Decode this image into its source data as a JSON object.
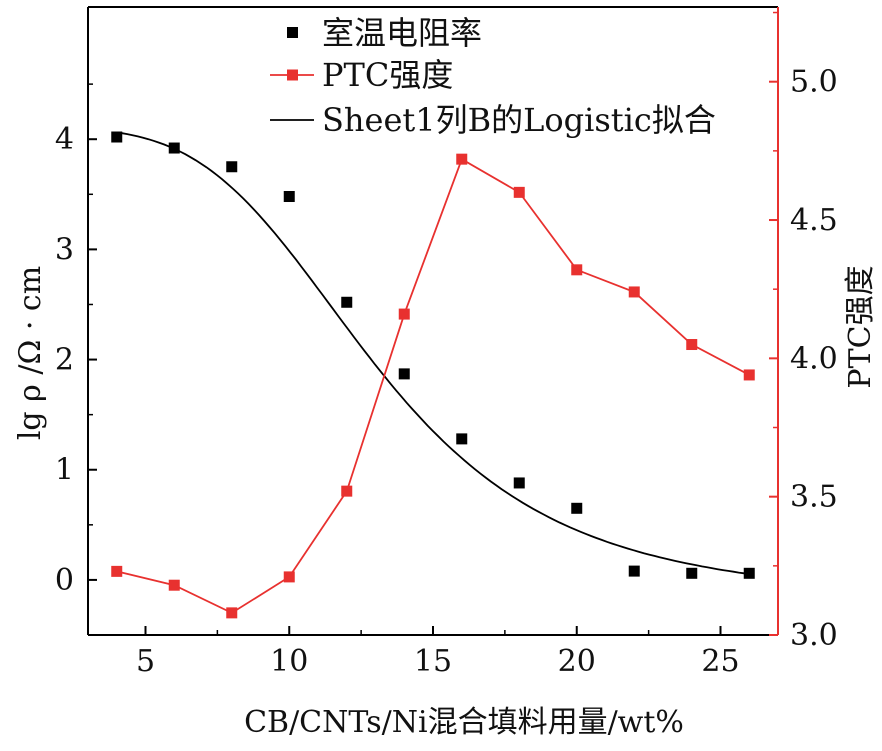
{
  "chart_data": {
    "type": "scatter",
    "xlabel": "CB/CNTs/Ni混合填料用量/wt%",
    "ylabel_left": "lg ρ /Ω · cm",
    "ylabel_right": "PTC强度",
    "xlim": [
      3,
      27
    ],
    "ylim_left": [
      -0.5,
      5.2
    ],
    "ylim_right": [
      3.0,
      5.27
    ],
    "x_ticks": [
      5,
      10,
      15,
      20,
      25
    ],
    "y_ticks_left": [
      0,
      1,
      2,
      3,
      4
    ],
    "y_ticks_right": [
      3.0,
      3.5,
      4.0,
      4.5,
      5.0
    ],
    "legend_position": "top-center",
    "colors": {
      "resistivity": "#000000",
      "ptc": "#e8312f",
      "right_axis": "#e8312f",
      "fit": "#000000"
    },
    "series": [
      {
        "name": "室温电阻率",
        "axis": "left",
        "style": "square-marker",
        "x": [
          4,
          6,
          8,
          10,
          12,
          14,
          16,
          18,
          20,
          22,
          24,
          26
        ],
        "y": [
          4.02,
          3.92,
          3.75,
          3.48,
          2.52,
          1.87,
          1.28,
          0.88,
          0.65,
          0.08,
          0.06,
          0.06
        ]
      },
      {
        "name": "PTC强度",
        "axis": "right",
        "style": "line-square",
        "x": [
          4,
          6,
          8,
          10,
          12,
          14,
          16,
          18,
          20,
          22,
          24,
          26
        ],
        "y": [
          3.23,
          3.18,
          3.08,
          3.21,
          3.52,
          4.16,
          4.72,
          4.6,
          4.32,
          4.24,
          4.05,
          3.94
        ]
      },
      {
        "name": "Sheet1列B的Logistic拟合",
        "axis": "left",
        "style": "line",
        "fit": {
          "A1": 4.1,
          "A2": -0.2,
          "x0": 13.0,
          "p": 4.0
        },
        "x_range": [
          4,
          26
        ]
      }
    ]
  }
}
